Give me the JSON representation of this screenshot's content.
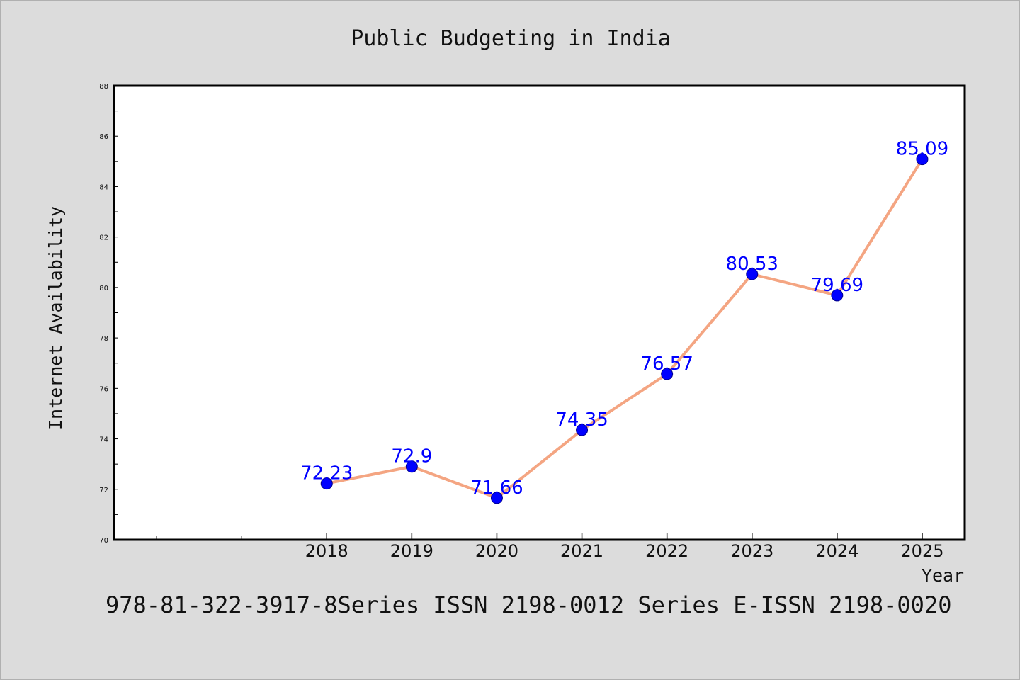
{
  "colors": {
    "background": "#dcdcdc",
    "plot_background": "#ffffff",
    "line": "#f4a582",
    "marker": "#0000ff",
    "data_label": "#0000ff",
    "axis": "#000000"
  },
  "chart_data": {
    "type": "line",
    "title": "Public Budgeting in India",
    "xlabel": "Year",
    "ylabel": "Internet Availability",
    "categories": [
      "2018",
      "2019",
      "2020",
      "2021",
      "2022",
      "2023",
      "2024",
      "2025"
    ],
    "series": [
      {
        "values": [
          72.23,
          72.9,
          71.66,
          74.35,
          76.57,
          80.53,
          79.69,
          85.09
        ],
        "data_labels": [
          "72.23",
          "72.9",
          "71.66",
          "74.35",
          "76.57",
          "80.53",
          "79.69",
          "85.09"
        ]
      }
    ],
    "ylim": [
      70,
      88
    ],
    "yticks": [
      70,
      72,
      74,
      76,
      78,
      80,
      82,
      84,
      86,
      88
    ],
    "x_range": [
      2015.5,
      2025.5
    ],
    "grid": false,
    "legend": "none",
    "marker": "circle"
  },
  "footer": "978-81-322-3917-8Series ISSN 2198-0012 Series E-ISSN 2198-0020"
}
